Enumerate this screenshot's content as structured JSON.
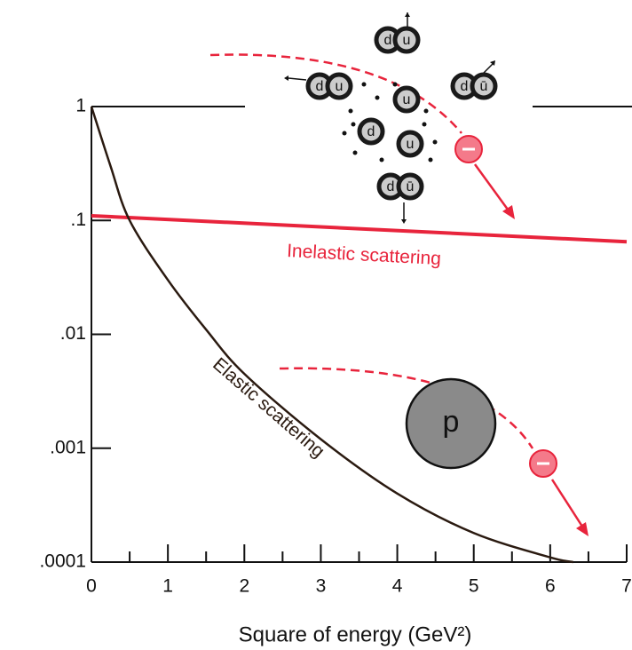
{
  "chart_data": {
    "type": "line",
    "x_label": "Square of energy (GeV²)",
    "xlim": [
      0,
      7
    ],
    "xticks": [
      0,
      1,
      2,
      3,
      4,
      5,
      6,
      7
    ],
    "ylim": [
      0.0001,
      1
    ],
    "ylog": true,
    "yticks": [
      {
        "value": 0.0001,
        "label": ".0001"
      },
      {
        "value": 0.001,
        "label": ".001"
      },
      {
        "value": 0.01,
        "label": ".01"
      },
      {
        "value": 0.1,
        "label": ".1"
      },
      1
    ],
    "series": [
      {
        "name": "Inelastic scattering",
        "color": "#e8243c",
        "x": [
          0,
          7
        ],
        "values": [
          0.11,
          0.065
        ]
      },
      {
        "name": "Elastic scattering",
        "color": "#2a1a10",
        "x": [
          0,
          0.25,
          0.5,
          1,
          1.5,
          2,
          3,
          4,
          5,
          6,
          6.3
        ],
        "values": [
          1,
          0.3,
          0.1,
          0.03,
          0.011,
          0.0045,
          0.0012,
          0.0004,
          0.00018,
          0.00011,
          0.0001
        ]
      }
    ],
    "quark_labels": [
      "d",
      "u",
      "d",
      "u",
      "u",
      "d",
      "ū",
      "d",
      "u",
      "d",
      "ū"
    ],
    "proton_label": "p"
  }
}
